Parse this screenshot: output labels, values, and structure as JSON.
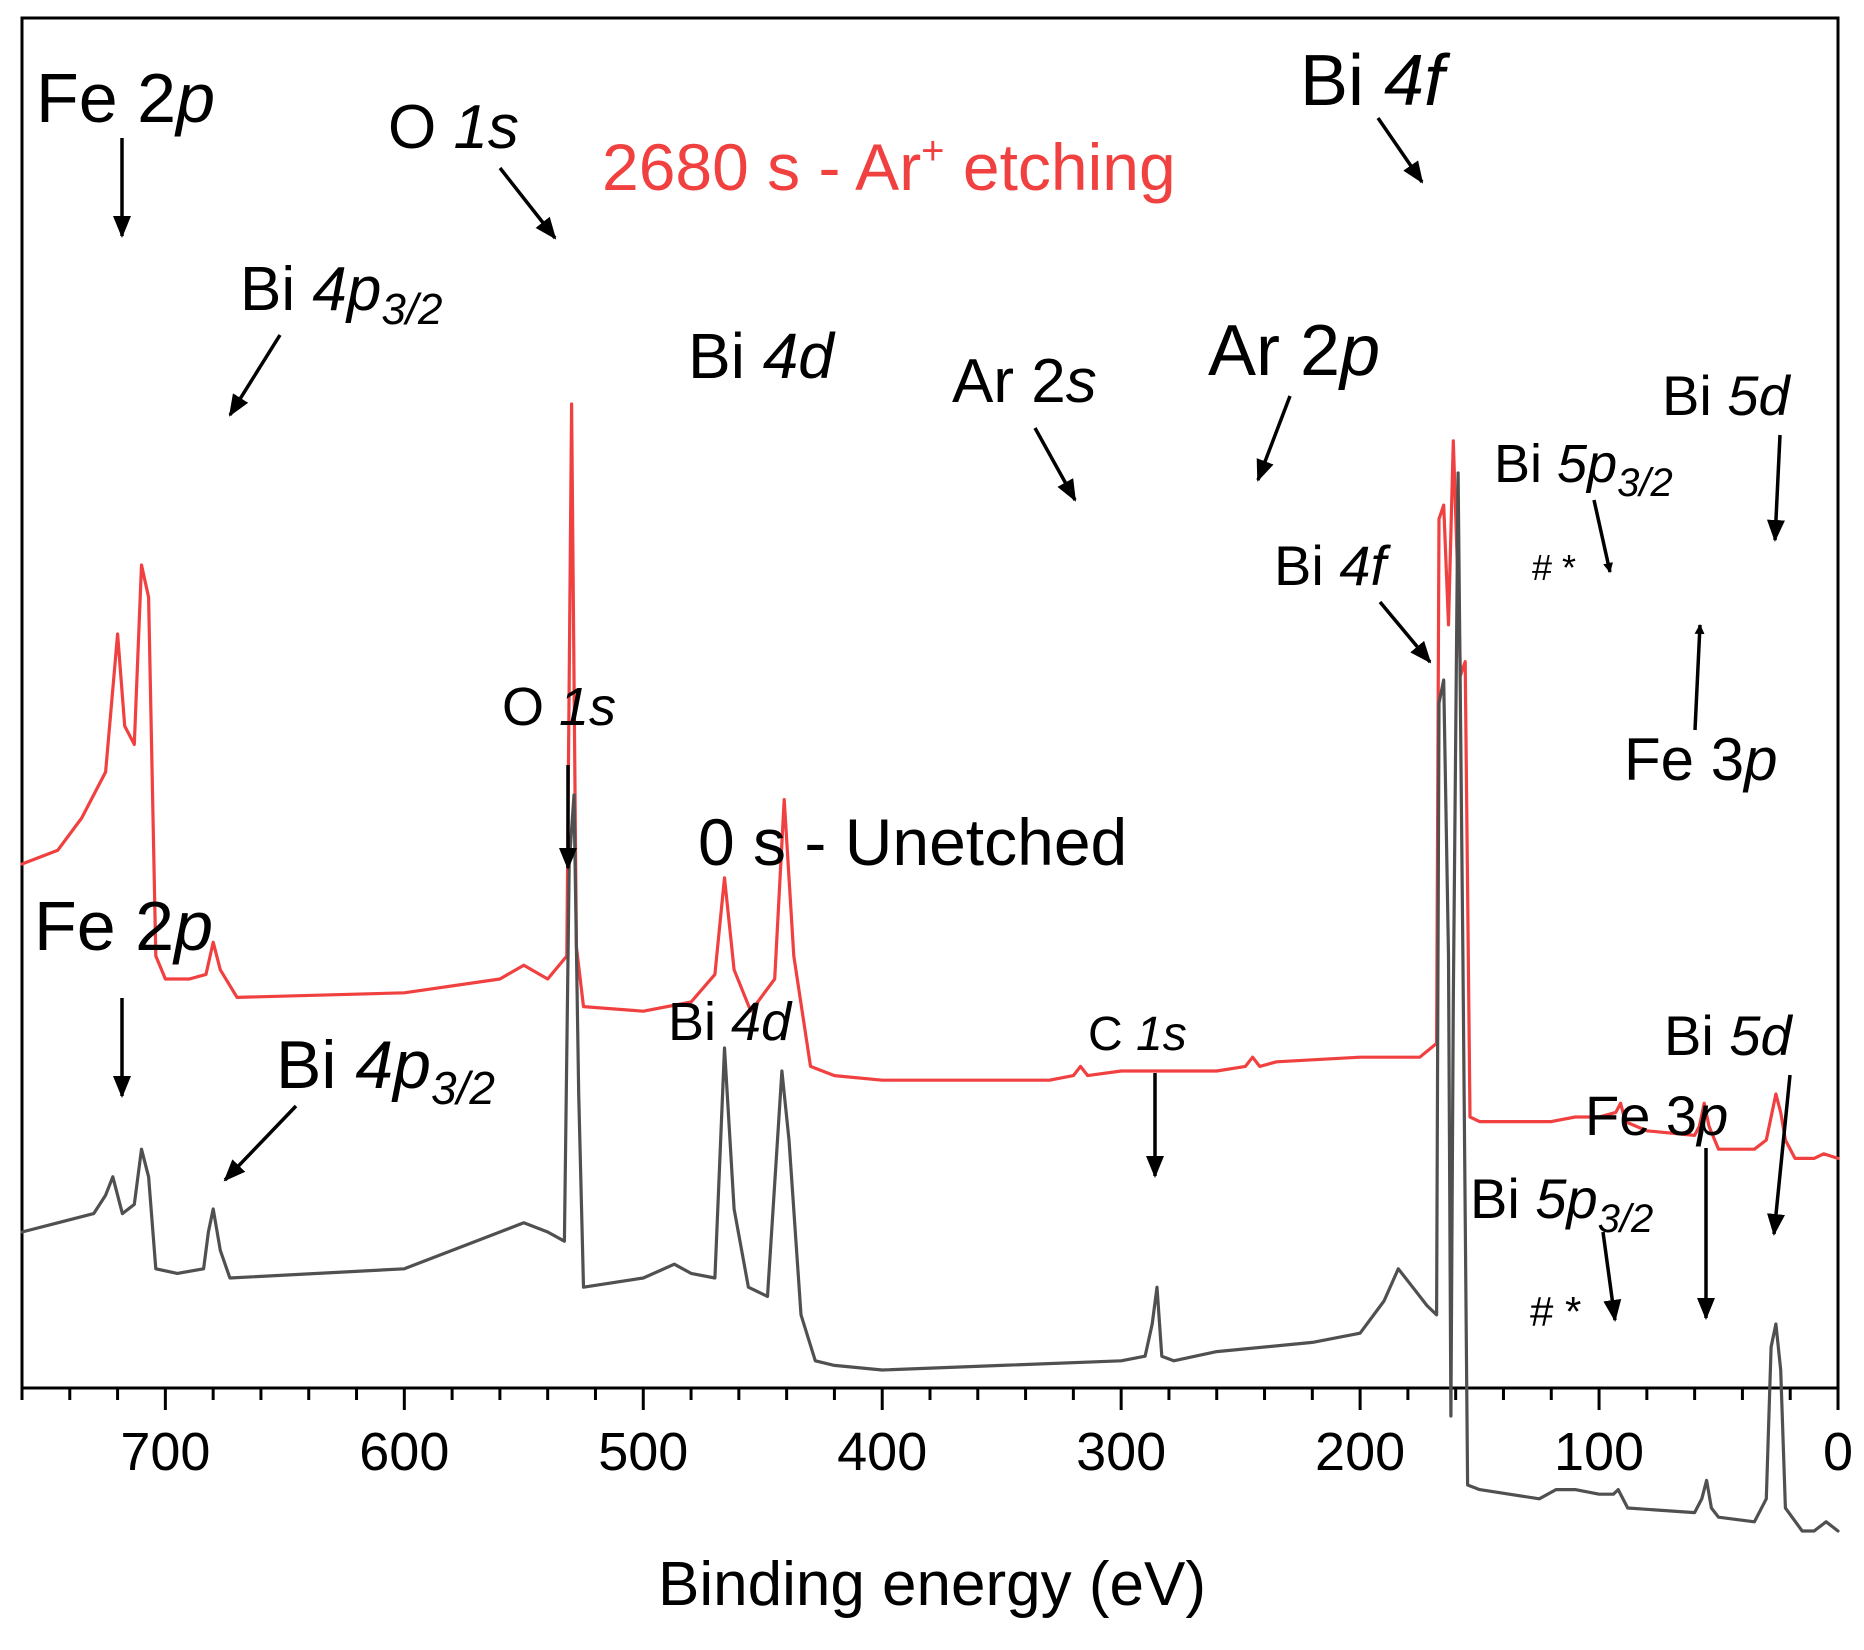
{
  "chart_data": {
    "type": "line",
    "title": "",
    "xlabel": "Binding energy (eV)",
    "ylabel": "",
    "xlim": [
      760,
      0
    ],
    "x_reversed": true,
    "xticks": [
      700,
      600,
      500,
      400,
      300,
      200,
      100,
      0
    ],
    "yaxis_ticks": "none",
    "colors": {
      "etched": "#f04040",
      "unetched": "#505050"
    },
    "series": [
      {
        "name": "2680 s - Ar+ etching",
        "label_main": "2680 s - Ar",
        "label_sup": "+",
        "label_tail": " etching",
        "color": "#f04040",
        "points": [
          [
            760,
            80
          ],
          [
            745,
            83
          ],
          [
            735,
            90
          ],
          [
            725,
            100
          ],
          [
            720,
            130
          ],
          [
            717,
            110
          ],
          [
            713,
            106
          ],
          [
            710,
            145
          ],
          [
            707,
            138
          ],
          [
            704,
            60
          ],
          [
            700,
            55
          ],
          [
            690,
            55
          ],
          [
            683,
            56
          ],
          [
            680,
            63
          ],
          [
            677,
            57
          ],
          [
            670,
            51
          ],
          [
            600,
            52
          ],
          [
            560,
            55
          ],
          [
            550,
            58
          ],
          [
            540,
            55
          ],
          [
            532,
            60
          ],
          [
            530,
            180
          ],
          [
            528,
            62
          ],
          [
            525,
            49
          ],
          [
            500,
            48
          ],
          [
            480,
            50
          ],
          [
            470,
            56
          ],
          [
            466,
            77
          ],
          [
            462,
            57
          ],
          [
            455,
            48
          ],
          [
            445,
            55
          ],
          [
            441,
            94
          ],
          [
            437,
            60
          ],
          [
            430,
            36
          ],
          [
            420,
            34
          ],
          [
            400,
            33
          ],
          [
            330,
            33
          ],
          [
            320,
            34
          ],
          [
            317,
            36
          ],
          [
            314,
            34
          ],
          [
            300,
            35
          ],
          [
            260,
            35
          ],
          [
            248,
            36
          ],
          [
            245,
            38
          ],
          [
            242,
            36
          ],
          [
            235,
            37
          ],
          [
            200,
            38
          ],
          [
            175,
            38
          ],
          [
            168,
            41
          ],
          [
            167,
            155
          ],
          [
            165,
            158
          ],
          [
            163,
            132
          ],
          [
            161,
            172
          ],
          [
            159,
            140
          ],
          [
            158,
            121
          ],
          [
            156,
            124
          ],
          [
            154,
            25
          ],
          [
            150,
            24
          ],
          [
            120,
            24
          ],
          [
            110,
            25
          ],
          [
            100,
            25
          ],
          [
            93,
            26
          ],
          [
            91,
            28
          ],
          [
            89,
            24
          ],
          [
            80,
            22
          ],
          [
            60,
            21
          ],
          [
            58,
            23
          ],
          [
            56,
            28
          ],
          [
            54,
            23
          ],
          [
            50,
            18
          ],
          [
            35,
            18
          ],
          [
            30,
            20
          ],
          [
            28,
            25
          ],
          [
            26,
            30
          ],
          [
            24,
            26
          ],
          [
            22,
            20
          ],
          [
            18,
            16
          ],
          [
            10,
            16
          ],
          [
            6,
            17
          ],
          [
            0,
            16
          ]
        ]
      },
      {
        "name": "0 s - Unetched",
        "color": "#505050",
        "points": [
          [
            760,
            0
          ],
          [
            745,
            2
          ],
          [
            730,
            4
          ],
          [
            725,
            8
          ],
          [
            722,
            12
          ],
          [
            718,
            4
          ],
          [
            713,
            6
          ],
          [
            710,
            18
          ],
          [
            707,
            12
          ],
          [
            704,
            -8
          ],
          [
            695,
            -9
          ],
          [
            684,
            -8
          ],
          [
            682,
            0
          ],
          [
            680,
            5
          ],
          [
            677,
            -4
          ],
          [
            673,
            -10
          ],
          [
            600,
            -8
          ],
          [
            560,
            0
          ],
          [
            550,
            2
          ],
          [
            540,
            0
          ],
          [
            533,
            -2
          ],
          [
            531,
            80
          ],
          [
            529,
            95
          ],
          [
            527,
            30
          ],
          [
            525,
            -12
          ],
          [
            500,
            -10
          ],
          [
            487,
            -7
          ],
          [
            480,
            -9
          ],
          [
            470,
            -10
          ],
          [
            466,
            40
          ],
          [
            462,
            5
          ],
          [
            456,
            -12
          ],
          [
            448,
            -14
          ],
          [
            442,
            35
          ],
          [
            439,
            20
          ],
          [
            434,
            -18
          ],
          [
            428,
            -28
          ],
          [
            420,
            -29
          ],
          [
            400,
            -30
          ],
          [
            350,
            -29
          ],
          [
            300,
            -28
          ],
          [
            290,
            -27
          ],
          [
            287,
            -20
          ],
          [
            285,
            -12
          ],
          [
            283,
            -27
          ],
          [
            278,
            -28
          ],
          [
            260,
            -26
          ],
          [
            220,
            -24
          ],
          [
            200,
            -22
          ],
          [
            190,
            -15
          ],
          [
            184,
            -8
          ],
          [
            178,
            -12
          ],
          [
            172,
            -16
          ],
          [
            168,
            -18
          ],
          [
            167,
            115
          ],
          [
            165,
            120
          ],
          [
            163,
            60
          ],
          [
            162,
            -40
          ],
          [
            161,
            50
          ],
          [
            159,
            165
          ],
          [
            157,
            60
          ],
          [
            155,
            -55
          ],
          [
            150,
            -56
          ],
          [
            125,
            -58
          ],
          [
            118,
            -56
          ],
          [
            110,
            -56
          ],
          [
            100,
            -57
          ],
          [
            94,
            -57
          ],
          [
            92,
            -56
          ],
          [
            88,
            -60
          ],
          [
            60,
            -61
          ],
          [
            57,
            -58
          ],
          [
            55,
            -54
          ],
          [
            53,
            -60
          ],
          [
            50,
            -62
          ],
          [
            35,
            -63
          ],
          [
            30,
            -58
          ],
          [
            28,
            -25
          ],
          [
            26,
            -20
          ],
          [
            24,
            -30
          ],
          [
            22,
            -60
          ],
          [
            15,
            -65
          ],
          [
            10,
            -65
          ],
          [
            5,
            -63
          ],
          [
            0,
            -65
          ]
        ]
      }
    ],
    "annotations_etched": {
      "fe2p": {
        "main": "Fe 2",
        "it": "p"
      },
      "o1s": {
        "main": "O ",
        "it": "1s"
      },
      "bi4p": {
        "main": "Bi ",
        "it": "4p",
        "sub": "3/2"
      },
      "bi4d": {
        "main": "Bi ",
        "it": "4d"
      },
      "ar2s": {
        "main": "Ar 2",
        "it": "s"
      },
      "ar2p": {
        "main": "Ar 2",
        "it": "p"
      },
      "bi4f": {
        "main": "Bi ",
        "it": "4f"
      },
      "bi5p": {
        "main": "Bi ",
        "it": "5p",
        "sub": "3/2"
      },
      "bi5d": {
        "main": "Bi ",
        "it": "5d"
      },
      "fe3p": {
        "main": "Fe 3",
        "it": "p"
      },
      "marks": "# *"
    },
    "annotations_unetched": {
      "fe2p": {
        "main": "Fe 2",
        "it": "p"
      },
      "o1s": {
        "main": "O ",
        "it": "1s"
      },
      "bi4p": {
        "main": "Bi ",
        "it": "4p",
        "sub": "3/2"
      },
      "bi4d": {
        "main": "Bi ",
        "it": "4d"
      },
      "c1s": {
        "main": "C ",
        "it": "1s"
      },
      "bi4f": {
        "main": "Bi ",
        "it": "4f"
      },
      "bi5p": {
        "main": "Bi ",
        "it": "5p",
        "sub": "3/2"
      },
      "bi5d": {
        "main": "Bi ",
        "it": "5d"
      },
      "fe3p": {
        "main": "Fe 3",
        "it": "p"
      },
      "marks": "# *"
    }
  }
}
